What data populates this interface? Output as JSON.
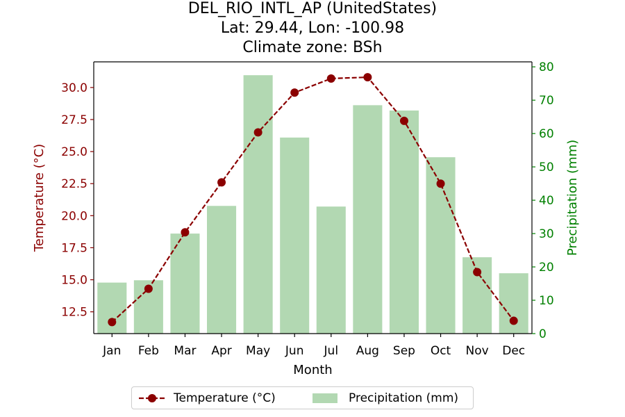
{
  "header": {
    "title": "DEL_RIO_INTL_AP (UnitedStates)",
    "subtitle1": "Lat: 29.44, Lon: -100.98",
    "subtitle2": "Climate zone: BSh"
  },
  "colors": {
    "temperature": "#8b0000",
    "precip_bar": "#b2d8b2",
    "precip_axis": "#008000",
    "temp_axis": "#8b0000"
  },
  "chart_data": {
    "type": "bar+line",
    "categories": [
      "Jan",
      "Feb",
      "Mar",
      "Apr",
      "May",
      "Jun",
      "Jul",
      "Aug",
      "Sep",
      "Oct",
      "Nov",
      "Dec"
    ],
    "xlabel": "Month",
    "ylabel_left": "Temperature (°C)",
    "ylabel_right": "Precipitation (mm)",
    "ylim_left": [
      10.8,
      32.0
    ],
    "ylim_right": [
      0,
      81.5
    ],
    "yticks_left": [
      12.5,
      15.0,
      17.5,
      20.0,
      22.5,
      25.0,
      27.5,
      30.0
    ],
    "yticks_left_labels": [
      "12.5",
      "15.0",
      "17.5",
      "20.0",
      "22.5",
      "25.0",
      "27.5",
      "30.0"
    ],
    "yticks_right": [
      0,
      10,
      20,
      30,
      40,
      50,
      60,
      70,
      80
    ],
    "yticks_right_labels": [
      "0",
      "10",
      "20",
      "30",
      "40",
      "50",
      "60",
      "70",
      "80"
    ],
    "series": [
      {
        "name": "Temperature (°C)",
        "type": "line",
        "values": [
          11.7,
          14.3,
          18.7,
          22.6,
          26.5,
          29.6,
          30.7,
          30.8,
          27.4,
          22.5,
          15.6,
          11.8
        ]
      },
      {
        "name": "Precipitation (mm)",
        "type": "bar",
        "values": [
          15.3,
          16.0,
          30.0,
          38.3,
          77.5,
          58.8,
          38.1,
          68.5,
          66.9,
          52.9,
          22.9,
          18.1
        ]
      }
    ],
    "legend": {
      "position": "bottom-center",
      "entries": [
        "Temperature (°C)",
        "Precipitation (mm)"
      ]
    },
    "grid": false
  }
}
